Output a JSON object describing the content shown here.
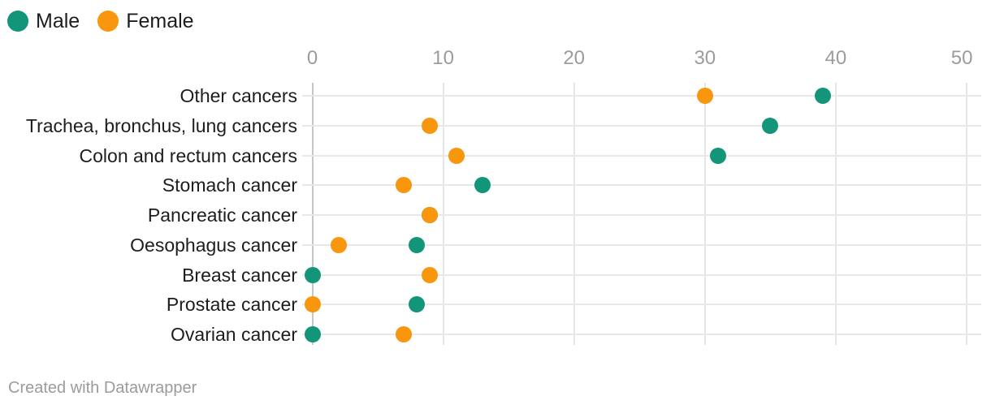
{
  "legend": {
    "items": [
      {
        "label": "Male",
        "color": "#13957a"
      },
      {
        "label": "Female",
        "color": "#f8960d"
      }
    ]
  },
  "footer": {
    "text": "Created with Datawrapper"
  },
  "colors": {
    "male": "#13957a",
    "female": "#f8960d",
    "grid": "#e8e8e8",
    "zero_line": "#c6c6c6",
    "tick_label": "#9c9c9c",
    "category_label": "#1d1d1d",
    "footer_text": "#9b9b9b",
    "background": "#ffffff"
  },
  "chart_data": {
    "type": "scatter",
    "subtype": "dot-plot",
    "orientation": "horizontal",
    "categories": [
      "Other cancers",
      "Trachea, bronchus, lung cancers",
      "Colon and rectum cancers",
      "Stomach cancer",
      "Pancreatic cancer",
      "Oesophagus cancer",
      "Breast cancer",
      "Prostate cancer",
      "Ovarian cancer"
    ],
    "series": [
      {
        "name": "Male",
        "color": "#13957a",
        "values": [
          39,
          35,
          31,
          13,
          9,
          8,
          0,
          8,
          0
        ]
      },
      {
        "name": "Female",
        "color": "#f8960d",
        "values": [
          30,
          9,
          11,
          7,
          9,
          2,
          9,
          0,
          7
        ]
      }
    ],
    "x_ticks": [
      0,
      10,
      20,
      30,
      40,
      50
    ],
    "xlim": [
      0,
      50
    ],
    "xlabel": "",
    "ylabel": "",
    "title": "",
    "grid": true,
    "legend_position": "top-left",
    "notes": "Female dots drawn on top of male dots; Pancreatic cancer male dot (9) hidden beneath female dot (9)."
  }
}
